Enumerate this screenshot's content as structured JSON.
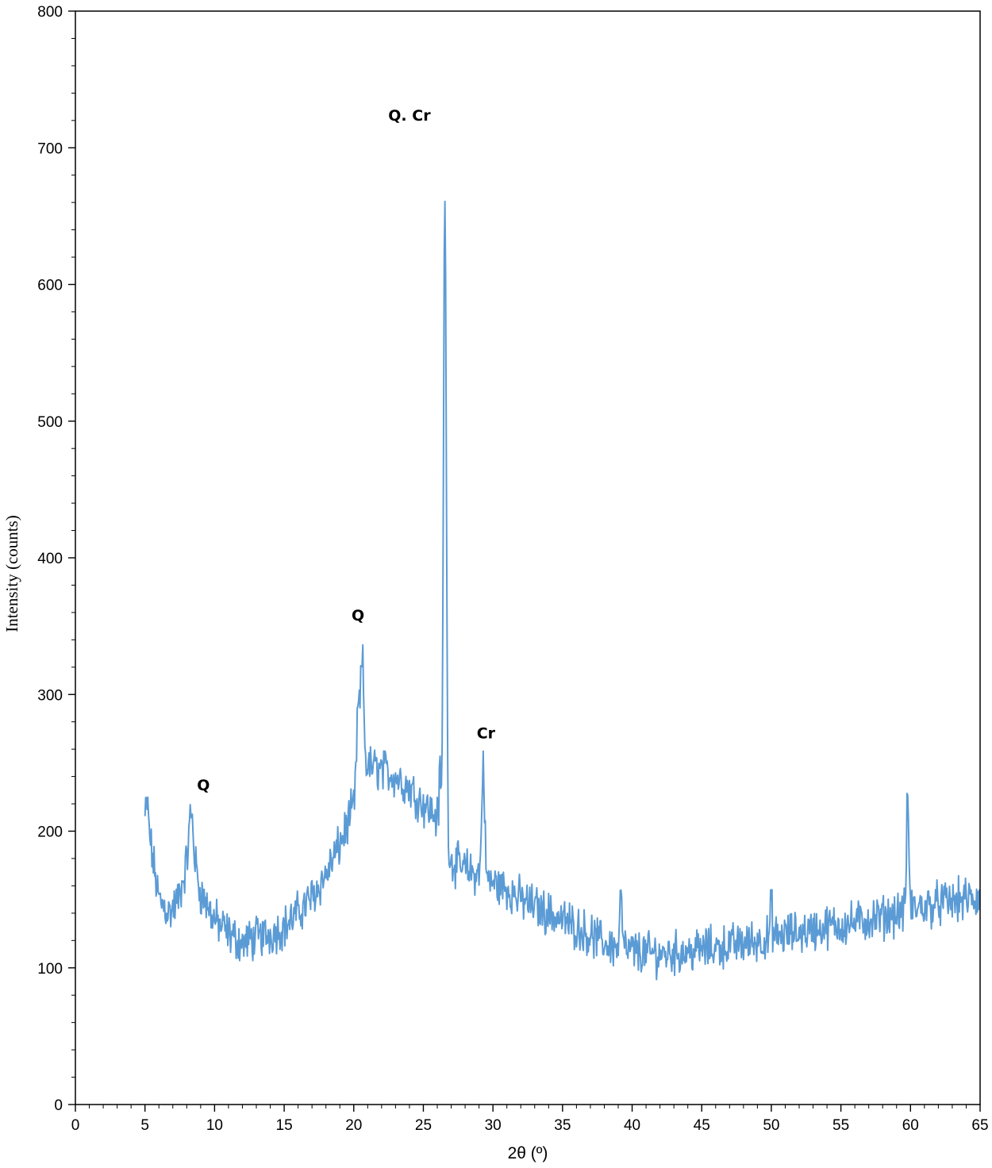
{
  "chart_data": {
    "type": "line",
    "title": "",
    "xlabel": "2θ (º)",
    "ylabel": "Intensity (counts)",
    "xlim": [
      0,
      65
    ],
    "ylim": [
      0,
      800
    ],
    "x_ticks": [
      0,
      5,
      10,
      15,
      20,
      25,
      30,
      35,
      40,
      45,
      50,
      55,
      60,
      65
    ],
    "y_ticks": [
      0,
      100,
      200,
      300,
      400,
      500,
      600,
      700,
      800
    ],
    "x_minor_step": 1,
    "y_minor_step": 20,
    "grid": false,
    "legend": "none",
    "frame": "box",
    "line_color": "#5b9bd5",
    "series": [
      {
        "x_start": 5.0,
        "x_end": 65.0,
        "x_step": 0.05,
        "profile": [
          [
            5.0,
            200
          ],
          [
            5.4,
            190
          ],
          [
            6.0,
            150
          ],
          [
            6.8,
            140
          ],
          [
            7.4,
            150
          ],
          [
            8.0,
            175
          ],
          [
            8.4,
            185
          ],
          [
            9.0,
            155
          ],
          [
            10.0,
            135
          ],
          [
            11.0,
            125
          ],
          [
            12.0,
            118
          ],
          [
            13.0,
            122
          ],
          [
            14.0,
            125
          ],
          [
            15.0,
            130
          ],
          [
            16.0,
            140
          ],
          [
            17.0,
            152
          ],
          [
            18.0,
            168
          ],
          [
            19.0,
            190
          ],
          [
            20.0,
            218
          ],
          [
            20.5,
            240
          ],
          [
            21.0,
            248
          ],
          [
            22.0,
            245
          ],
          [
            23.0,
            240
          ],
          [
            24.0,
            232
          ],
          [
            25.0,
            220
          ],
          [
            26.0,
            210
          ],
          [
            27.0,
            178
          ],
          [
            28.0,
            172
          ],
          [
            29.0,
            168
          ],
          [
            30.0,
            162
          ],
          [
            31.0,
            158
          ],
          [
            32.0,
            150
          ],
          [
            34.0,
            140
          ],
          [
            36.0,
            130
          ],
          [
            38.0,
            118
          ],
          [
            40.0,
            112
          ],
          [
            42.0,
            110
          ],
          [
            44.0,
            112
          ],
          [
            46.0,
            115
          ],
          [
            48.0,
            118
          ],
          [
            50.0,
            122
          ],
          [
            52.0,
            126
          ],
          [
            54.0,
            130
          ],
          [
            56.0,
            133
          ],
          [
            58.0,
            137
          ],
          [
            60.0,
            143
          ],
          [
            62.0,
            147
          ],
          [
            64.0,
            150
          ],
          [
            65.0,
            150
          ]
        ],
        "noise_amplitude": 12,
        "peaks": [
          {
            "x": 5.15,
            "height": 22,
            "width": 0.12
          },
          {
            "x": 8.3,
            "height": 30,
            "width": 0.15
          },
          {
            "x": 20.6,
            "height": 85,
            "width": 0.12
          },
          {
            "x": 20.3,
            "height": 55,
            "width": 0.1
          },
          {
            "x": 26.55,
            "height": 478,
            "width": 0.1
          },
          {
            "x": 26.2,
            "height": 40,
            "width": 0.06
          },
          {
            "x": 29.3,
            "height": 85,
            "width": 0.1
          },
          {
            "x": 39.2,
            "height": 50,
            "width": 0.06
          },
          {
            "x": 50.0,
            "height": 28,
            "width": 0.06
          },
          {
            "x": 59.8,
            "height": 85,
            "width": 0.08
          }
        ]
      }
    ],
    "annotations": [
      {
        "text": "Q",
        "x": 9.2,
        "y": 230
      },
      {
        "text": "Q",
        "x": 20.3,
        "y": 354
      },
      {
        "text": "Q. Cr",
        "x": 24.0,
        "y": 720
      },
      {
        "text": "Cr",
        "x": 29.5,
        "y": 268
      }
    ]
  }
}
